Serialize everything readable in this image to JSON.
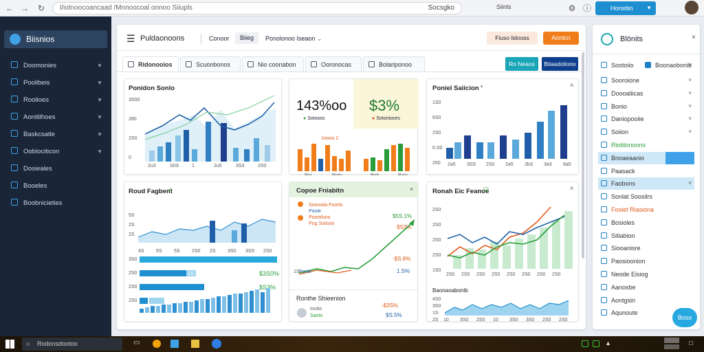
{
  "browser": {
    "url": "l/iotnoocoancaad /Mnnoocoal onnoo Siiupls",
    "search_label": "Socsgko",
    "right_label": "Siinls",
    "profile_label": "Honstiin"
  },
  "app": {
    "name": "Biisnios"
  },
  "sidebar": {
    "items": [
      "Doomonies",
      "Poolibeis",
      "Roolioes",
      "Aonitilhoes",
      "Baskcsatle",
      "Ooblociticon",
      "Dosieales",
      "Booeles",
      "Boobnicieties"
    ]
  },
  "header": {
    "title": "Puldaonoons",
    "link1": "Conoor",
    "link2": "Biieg",
    "dropdown": "Ponolonoo Iseaon",
    "search_btn": "Fiuso lidooss",
    "action_btn": "Aonicn"
  },
  "tabs": [
    "Ridonooios",
    "Scuonbonos",
    "Nio coonabon",
    "Ooronocas",
    "Bolariponoo"
  ],
  "tab_buttons": {
    "primary": "Ro Neaos",
    "secondary": "Biiaadoliono"
  },
  "cards": {
    "c1": {
      "title": "Ponidon Sonlo",
      "yticks": [
        "3S00",
        "280",
        "2S0",
        "0"
      ],
      "xticks": [
        "2u3",
        "S0S",
        "1",
        "2u5",
        "3S3",
        "2S0"
      ]
    },
    "c2": {
      "big1": "143%oo",
      "leg1": "Sotoooc",
      "big2": "$3%",
      "leg2": "Sotonioces",
      "bar_label": "1oooo 2",
      "x1": [
        "Roi",
        "Rotn"
      ],
      "x2": [
        "Boh",
        "Bain"
      ]
    },
    "c3": {
      "title": "Poniel Saiicion",
      "yticks": [
        "1S0",
        "6S0",
        "2S0",
        "0.S0",
        "250"
      ],
      "xticks": [
        "2a5",
        "S0S",
        "2S0",
        "2a5",
        "2bS",
        "3a3",
        "8a0"
      ]
    },
    "c4": {
      "title": "Roud Fagbent",
      "yticks": [
        "5S",
        "2S",
        "2S",
        "40",
        "S"
      ],
      "xticks": [
        "4S",
        "5S",
        "5S",
        "2S0",
        "2S",
        "3S0",
        "3SS",
        "2S0"
      ],
      "bar_ticks": [
        "3S0",
        "2S0",
        "2S0",
        "2S0"
      ],
      "bar_tag": "1S",
      "v1": "$3S0%",
      "v2": "$S3%",
      "btm_ticks": [
        "1S0",
        "2S0",
        "2S0",
        "1S0",
        "1S0"
      ],
      "btm_x": [
        "3S",
        "4S",
        "4S",
        "2S0",
        "3S0",
        "3S0",
        "3S0",
        "2S0"
      ]
    },
    "c5": {
      "title": "Copoe Fniabitn",
      "legend": [
        "Soonoiia Foorto",
        "Pooie",
        "Pootolono",
        "Pog Soiisoo"
      ],
      "r1": "$5S.1%",
      "r2": "$S3%",
      "r3": "-$S.8%",
      "r4": "1.S%",
      "yl": "1S",
      "title2": "Ronthe Shieenion",
      "person": [
        "Ioutio",
        "Saeto"
      ],
      "r5": "-$3S%",
      "r6": "$S.5%"
    },
    "c6": {
      "title": "Ronah Eic Feanoe",
      "yticks": [
        "2S0",
        "2S0",
        "2S0",
        "2S0",
        "1S0"
      ],
      "xticks": [
        "2S0",
        "2S0",
        "2S0",
        "2S0",
        "2S0",
        "2S0",
        "2S0",
        "2S0"
      ],
      "title2": "Baonaoabonib",
      "btm_ticks": [
        "4S0",
        "3S0",
        "1S",
        "2S"
      ],
      "btm_x": [
        "10",
        "3S0",
        "2S0",
        "10",
        "3S0",
        "3S0",
        "2S0",
        "2S0"
      ]
    }
  },
  "rpanel": {
    "title": "Blönits",
    "top": [
      "Sootoiio",
      "Boonaobonib"
    ],
    "items": [
      "Sooroione",
      "Doooaliicas",
      "Bonio",
      "Daniopooiie",
      "Soiion",
      "Riotitonoons",
      "Bnoaeaanio",
      "Paasack",
      "Faobons",
      "Sonlat Soosilrs",
      "Fosiet Riasiona",
      "Bosioles",
      "Sitiabion",
      "Siooanisre",
      "Paosioonion",
      "Neode Eisiog",
      "Aanosbe",
      "Aontgsin",
      "Aqunoute"
    ],
    "fab": "Boso"
  },
  "taskbar": {
    "search": "Rodonsdootoo"
  },
  "colors": {
    "accent": "#1d7fc4",
    "orange": "#f07d1a",
    "green": "#2a9d3a",
    "sidebar": "#1a2638"
  }
}
